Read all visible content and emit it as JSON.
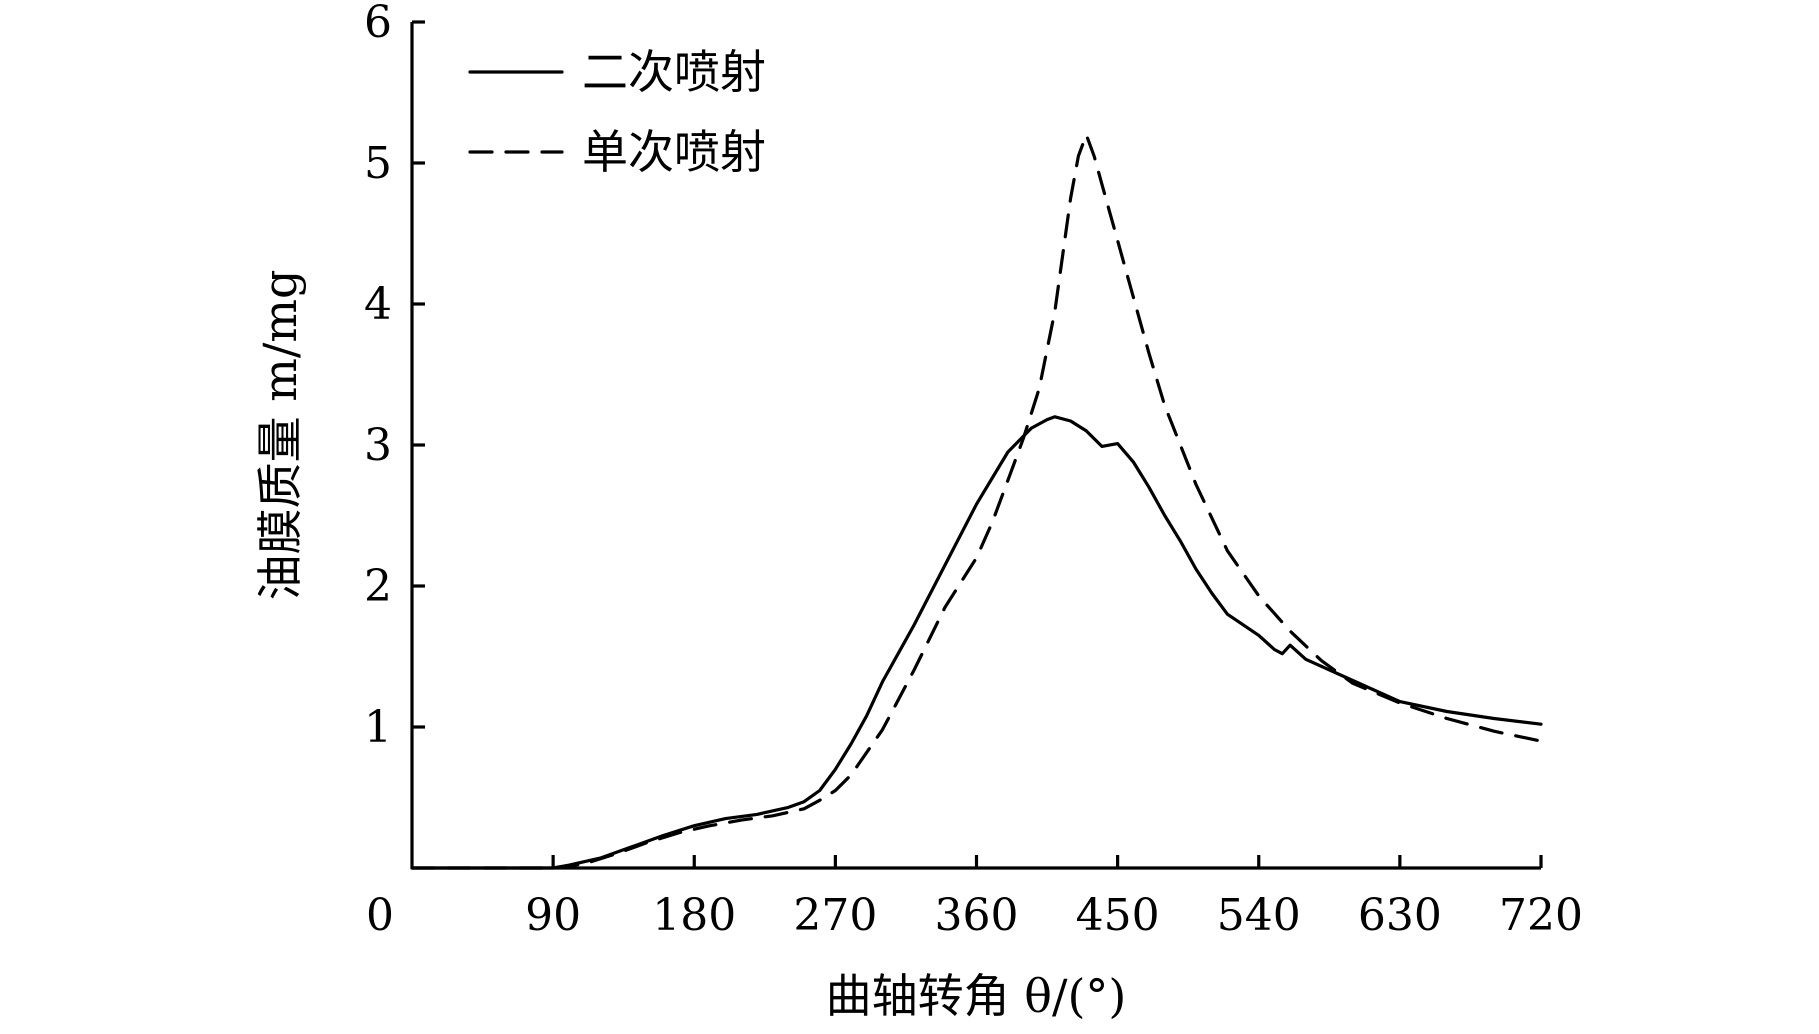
{
  "chart_data": {
    "type": "line",
    "xlabel": "曲轴转角 θ/(°)",
    "ylabel": "油膜质量 m/mg",
    "xlim": [
      0,
      720
    ],
    "ylim": [
      0,
      6
    ],
    "x_ticks": [
      "0",
      "90",
      "180",
      "270",
      "360",
      "450",
      "540",
      "630",
      "720"
    ],
    "y_ticks": [
      "1",
      "2",
      "3",
      "4",
      "5",
      "6"
    ],
    "grid": false,
    "legend_position": "top-left",
    "series": [
      {
        "name": "二次喷射",
        "style": "solid",
        "x": [
          0,
          90,
          100,
          120,
          140,
          160,
          180,
          200,
          220,
          240,
          250,
          260,
          270,
          280,
          290,
          300,
          320,
          340,
          360,
          380,
          395,
          405,
          410,
          420,
          430,
          440,
          450,
          460,
          470,
          480,
          490,
          500,
          510,
          520,
          540,
          550,
          555,
          560,
          570,
          600,
          630,
          660,
          690,
          720
        ],
        "y": [
          0,
          0,
          0.02,
          0.07,
          0.15,
          0.23,
          0.3,
          0.35,
          0.38,
          0.43,
          0.47,
          0.55,
          0.7,
          0.88,
          1.08,
          1.32,
          1.72,
          2.15,
          2.58,
          2.95,
          3.12,
          3.18,
          3.2,
          3.17,
          3.1,
          2.99,
          3.01,
          2.88,
          2.7,
          2.5,
          2.32,
          2.12,
          1.95,
          1.8,
          1.65,
          1.55,
          1.52,
          1.58,
          1.48,
          1.33,
          1.18,
          1.11,
          1.06,
          1.02
        ]
      },
      {
        "name": "单次喷射",
        "style": "dashed",
        "x": [
          0,
          90,
          110,
          130,
          150,
          170,
          190,
          210,
          230,
          250,
          260,
          270,
          280,
          300,
          320,
          340,
          360,
          370,
          380,
          390,
          400,
          410,
          420,
          425,
          430,
          435,
          440,
          450,
          460,
          470,
          480,
          500,
          520,
          540,
          560,
          580,
          600,
          630,
          660,
          690,
          720
        ],
        "y": [
          0,
          0,
          0.03,
          0.1,
          0.18,
          0.25,
          0.3,
          0.34,
          0.37,
          0.42,
          0.48,
          0.55,
          0.66,
          0.98,
          1.4,
          1.85,
          2.2,
          2.45,
          2.75,
          3.05,
          3.4,
          3.95,
          4.75,
          5.05,
          5.2,
          5.05,
          4.85,
          4.45,
          4.05,
          3.65,
          3.28,
          2.72,
          2.25,
          1.93,
          1.68,
          1.47,
          1.31,
          1.17,
          1.06,
          0.97,
          0.9
        ]
      }
    ]
  }
}
